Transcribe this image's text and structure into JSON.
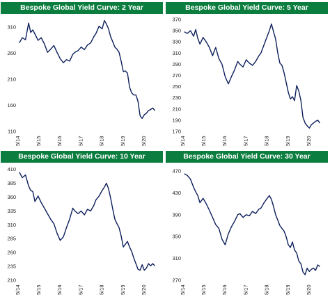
{
  "colors": {
    "header_bg": "#0b7d3e",
    "header_text": "#ffffff",
    "line": "#0d1f5c"
  },
  "chart_data": [
    {
      "type": "line",
      "title": "Bespoke Global Yield Curve: 2 Year",
      "x_ticks": [
        "5/14",
        "5/15",
        "5/16",
        "5/17",
        "5/18",
        "5/19",
        "5/20"
      ],
      "y_ticks": [
        110,
        160,
        210,
        260,
        310
      ],
      "xlim": [
        2014.3,
        2020.92
      ],
      "ylim": [
        110,
        325
      ],
      "series": [
        {
          "x": [
            2014.36,
            2014.5,
            2014.65,
            2014.8,
            2014.9,
            2015.0,
            2015.1,
            2015.25,
            2015.4,
            2015.55,
            2015.7,
            2015.85,
            2016.0,
            2016.15,
            2016.3,
            2016.45,
            2016.6,
            2016.75,
            2016.9,
            2017.0,
            2017.15,
            2017.3,
            2017.45,
            2017.6,
            2017.75,
            2017.9,
            2018.0,
            2018.15,
            2018.3,
            2018.4,
            2018.5,
            2018.6,
            2018.7,
            2018.8,
            2018.9,
            2019.0,
            2019.1,
            2019.2,
            2019.3,
            2019.4,
            2019.5,
            2019.6,
            2019.7,
            2019.8,
            2019.9,
            2020.0,
            2020.1,
            2020.2,
            2020.3,
            2020.4,
            2020.5,
            2020.6,
            2020.7,
            2020.8
          ],
          "y": [
            280,
            290,
            286,
            318,
            300,
            305,
            297,
            285,
            290,
            278,
            262,
            268,
            275,
            262,
            250,
            242,
            248,
            245,
            258,
            262,
            265,
            272,
            267,
            276,
            280,
            292,
            298,
            312,
            307,
            323,
            316,
            307,
            292,
            282,
            272,
            268,
            262,
            245,
            225,
            226,
            222,
            195,
            184,
            180,
            180,
            168,
            140,
            135,
            142,
            145,
            150,
            152,
            155,
            150
          ]
        }
      ]
    },
    {
      "type": "line",
      "title": "Bespoke Global Yield Curve: 5 Year",
      "x_ticks": [
        "5/14",
        "5/15",
        "5/16",
        "5/17",
        "5/18",
        "5/19",
        "5/20"
      ],
      "y_ticks": [
        170,
        190,
        210,
        230,
        250,
        270,
        290,
        310,
        330,
        350,
        370
      ],
      "xlim": [
        2014.3,
        2020.92
      ],
      "ylim": [
        170,
        370
      ],
      "series": [
        {
          "x": [
            2014.36,
            2014.5,
            2014.65,
            2014.8,
            2014.9,
            2015.0,
            2015.1,
            2015.25,
            2015.4,
            2015.55,
            2015.7,
            2015.85,
            2016.0,
            2016.15,
            2016.3,
            2016.45,
            2016.6,
            2016.75,
            2016.9,
            2017.0,
            2017.15,
            2017.3,
            2017.45,
            2017.6,
            2017.75,
            2017.9,
            2018.0,
            2018.15,
            2018.3,
            2018.4,
            2018.5,
            2018.6,
            2018.7,
            2018.8,
            2018.9,
            2019.0,
            2019.1,
            2019.2,
            2019.3,
            2019.4,
            2019.5,
            2019.6,
            2019.7,
            2019.8,
            2019.9,
            2020.0,
            2020.1,
            2020.2,
            2020.3,
            2020.4,
            2020.5,
            2020.6,
            2020.7,
            2020.8
          ],
          "y": [
            348,
            345,
            350,
            340,
            352,
            336,
            326,
            338,
            330,
            320,
            305,
            320,
            300,
            290,
            268,
            255,
            268,
            280,
            295,
            290,
            285,
            298,
            292,
            288,
            295,
            305,
            310,
            325,
            340,
            350,
            362,
            348,
            335,
            310,
            292,
            288,
            275,
            258,
            240,
            228,
            232,
            225,
            252,
            242,
            225,
            195,
            185,
            180,
            176,
            182,
            185,
            188,
            190,
            185
          ]
        }
      ]
    },
    {
      "type": "line",
      "title": "Bespoke Global Yield Curve: 10 Year",
      "x_ticks": [
        "5/14",
        "5/15",
        "5/16",
        "5/17",
        "5/18",
        "5/19",
        "5/20"
      ],
      "y_ticks": [
        210,
        235,
        260,
        285,
        310,
        335,
        360,
        385,
        410
      ],
      "xlim": [
        2014.3,
        2020.92
      ],
      "ylim": [
        210,
        412
      ],
      "series": [
        {
          "x": [
            2014.36,
            2014.5,
            2014.65,
            2014.8,
            2014.9,
            2015.0,
            2015.1,
            2015.25,
            2015.4,
            2015.55,
            2015.7,
            2015.85,
            2016.0,
            2016.15,
            2016.3,
            2016.45,
            2016.6,
            2016.75,
            2016.9,
            2017.0,
            2017.15,
            2017.3,
            2017.45,
            2017.6,
            2017.75,
            2017.9,
            2018.0,
            2018.15,
            2018.3,
            2018.4,
            2018.5,
            2018.6,
            2018.7,
            2018.8,
            2018.9,
            2019.0,
            2019.1,
            2019.2,
            2019.3,
            2019.4,
            2019.5,
            2019.6,
            2019.7,
            2019.8,
            2019.9,
            2020.0,
            2020.1,
            2020.2,
            2020.3,
            2020.4,
            2020.5,
            2020.6,
            2020.7,
            2020.8
          ],
          "y": [
            405,
            395,
            400,
            380,
            372,
            370,
            352,
            362,
            350,
            340,
            330,
            320,
            312,
            295,
            282,
            288,
            305,
            320,
            340,
            335,
            330,
            335,
            328,
            338,
            335,
            345,
            355,
            362,
            372,
            378,
            385,
            375,
            358,
            338,
            320,
            312,
            305,
            290,
            270,
            275,
            280,
            270,
            262,
            250,
            240,
            230,
            228,
            238,
            228,
            232,
            240,
            236,
            240,
            236
          ]
        }
      ]
    },
    {
      "type": "line",
      "title": "Bespoke Global Yield Curve: 30 Year",
      "x_ticks": [
        "5/14",
        "5/15",
        "5/16",
        "5/17",
        "5/18",
        "5/19",
        "5/20"
      ],
      "y_ticks": [
        270,
        310,
        350,
        390,
        430,
        470
      ],
      "xlim": [
        2014.3,
        2020.92
      ],
      "ylim": [
        270,
        475
      ],
      "series": [
        {
          "x": [
            2014.36,
            2014.5,
            2014.65,
            2014.8,
            2014.9,
            2015.0,
            2015.1,
            2015.25,
            2015.4,
            2015.55,
            2015.7,
            2015.85,
            2016.0,
            2016.15,
            2016.3,
            2016.45,
            2016.6,
            2016.75,
            2016.9,
            2017.0,
            2017.15,
            2017.3,
            2017.45,
            2017.6,
            2017.75,
            2017.9,
            2018.0,
            2018.15,
            2018.3,
            2018.4,
            2018.5,
            2018.6,
            2018.7,
            2018.8,
            2018.9,
            2019.0,
            2019.1,
            2019.2,
            2019.3,
            2019.4,
            2019.5,
            2019.6,
            2019.7,
            2019.8,
            2019.9,
            2020.0,
            2020.1,
            2020.2,
            2020.3,
            2020.4,
            2020.5,
            2020.6,
            2020.7,
            2020.8
          ],
          "y": [
            465,
            462,
            455,
            440,
            432,
            425,
            412,
            420,
            410,
            398,
            385,
            372,
            365,
            345,
            335,
            355,
            368,
            378,
            390,
            392,
            385,
            390,
            388,
            396,
            392,
            400,
            402,
            412,
            420,
            425,
            418,
            405,
            390,
            380,
            370,
            365,
            360,
            350,
            335,
            330,
            340,
            325,
            320,
            305,
            300,
            285,
            280,
            292,
            286,
            290,
            292,
            288,
            298,
            295
          ]
        }
      ]
    }
  ]
}
